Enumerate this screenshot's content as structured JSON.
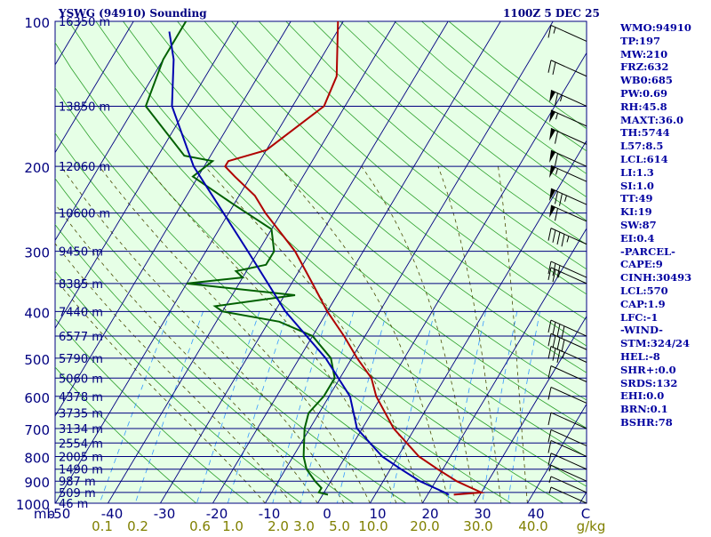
{
  "header": {
    "station": "YSWG (94910) Sounding",
    "time": "1100Z  5 DEC 25"
  },
  "indices": [
    "WMO:94910",
    "TP:197",
    "MW:210",
    "FRZ:632",
    "WB0:685",
    "PW:0.69",
    "RH:45.8",
    "MAXT:36.0",
    "TH:5744",
    "L57:8.5",
    "LCL:614",
    "LI:1.3",
    "SI:1.0",
    "TT:49",
    "KI:19",
    "SW:87",
    "EI:0.4",
    "-PARCEL-",
    "CAPE:9",
    "CINH:30493",
    "LCL:570",
    "CAP:1.9",
    "LFC:-1",
    "-WIND-",
    "STM:324/24",
    "HEL:-8",
    "SHR+:0.0",
    "SRDS:132",
    "EHI:0.0",
    "BRN:0.1",
    "BSHR:78"
  ],
  "colors": {
    "background": "#e6ffe6",
    "isobar": "#000080",
    "isotherm": "#000080",
    "dry_adiabat": "#2ca02c",
    "moist_adiabat": "#4a4a00",
    "mixing_ratio": "#3399ff",
    "temperature": "#b00000",
    "dewpoint": "#006000",
    "parcel": "#0000b0",
    "wind_barb": "#000000",
    "axis_text": "#000080",
    "mixing_text": "#808000"
  },
  "chart_data": {
    "type": "skew-t log-p",
    "y_axis": {
      "unit": "mb",
      "ticks": [
        100,
        200,
        300,
        400,
        500,
        600,
        700,
        800,
        900,
        1000
      ]
    },
    "x_axis": {
      "unit": "C",
      "ticks": [
        -50,
        -40,
        -30,
        -20,
        -10,
        0,
        10,
        20,
        30,
        40
      ]
    },
    "x_axis_labels": [
      "mb",
      "-50",
      "-40",
      "-30",
      "-20",
      "-10",
      "0",
      "10",
      "20",
      "30",
      "40",
      "C"
    ],
    "mixing_ratio_axis": {
      "unit": "g/kg",
      "ticks": [
        "0.1",
        "0.2",
        "0.6",
        "1.0",
        "2.0",
        "3.0",
        "5.0",
        "10.0",
        "20.0",
        "30.0",
        "40.0"
      ]
    },
    "height_labels": [
      {
        "p": 100,
        "label": "16350 m"
      },
      {
        "p": 150,
        "label": "13850 m"
      },
      {
        "p": 200,
        "label": "12060 m"
      },
      {
        "p": 250,
        "label": "10600 m"
      },
      {
        "p": 300,
        "label": "9450 m"
      },
      {
        "p": 350,
        "label": "8385 m"
      },
      {
        "p": 400,
        "label": "7440 m"
      },
      {
        "p": 450,
        "label": "6577 m"
      },
      {
        "p": 500,
        "label": "5790 m"
      },
      {
        "p": 550,
        "label": "5060 m"
      },
      {
        "p": 600,
        "label": "4378 m"
      },
      {
        "p": 650,
        "label": "3735 m"
      },
      {
        "p": 700,
        "label": "3134 m"
      },
      {
        "p": 750,
        "label": "2554 m"
      },
      {
        "p": 800,
        "label": "2005 m"
      },
      {
        "p": 850,
        "label": "1490 m"
      },
      {
        "p": 900,
        "label": "987 m"
      },
      {
        "p": 950,
        "label": "509 m"
      },
      {
        "p": 1000,
        "label": "46 m"
      }
    ],
    "series": [
      {
        "name": "Temperature",
        "points": [
          [
            960,
            25
          ],
          [
            950,
            30
          ],
          [
            925,
            27
          ],
          [
            900,
            24
          ],
          [
            850,
            19
          ],
          [
            800,
            14
          ],
          [
            700,
            6
          ],
          [
            600,
            -1
          ],
          [
            550,
            -4
          ],
          [
            500,
            -9
          ],
          [
            450,
            -14
          ],
          [
            400,
            -20
          ],
          [
            350,
            -26
          ],
          [
            300,
            -33
          ],
          [
            250,
            -43
          ],
          [
            230,
            -47
          ],
          [
            210,
            -53
          ],
          [
            200,
            -56
          ],
          [
            195,
            -56
          ],
          [
            185,
            -50
          ],
          [
            150,
            -44
          ],
          [
            130,
            -45
          ],
          [
            100,
            -51
          ]
        ]
      },
      {
        "name": "Dewpoint",
        "points": [
          [
            960,
            1
          ],
          [
            950,
            -1
          ],
          [
            930,
            -1
          ],
          [
            900,
            -3
          ],
          [
            850,
            -6
          ],
          [
            800,
            -8
          ],
          [
            700,
            -11
          ],
          [
            650,
            -12
          ],
          [
            600,
            -11
          ],
          [
            550,
            -11
          ],
          [
            500,
            -14
          ],
          [
            450,
            -20
          ],
          [
            420,
            -28
          ],
          [
            400,
            -40
          ],
          [
            390,
            -42
          ],
          [
            370,
            -28
          ],
          [
            350,
            -50
          ],
          [
            340,
            -40
          ],
          [
            330,
            -42
          ],
          [
            320,
            -37
          ],
          [
            300,
            -37
          ],
          [
            270,
            -40
          ],
          [
            240,
            -50
          ],
          [
            210,
            -61
          ],
          [
            195,
            -59
          ],
          [
            190,
            -65
          ],
          [
            150,
            -78
          ],
          [
            120,
            -80
          ],
          [
            100,
            -80
          ]
        ]
      },
      {
        "name": "Parcel",
        "points": [
          [
            960,
            24
          ],
          [
            950,
            23
          ],
          [
            925,
            20
          ],
          [
            900,
            17
          ],
          [
            850,
            12
          ],
          [
            800,
            7
          ],
          [
            700,
            -1
          ],
          [
            600,
            -6
          ],
          [
            500,
            -15
          ],
          [
            400,
            -28
          ],
          [
            300,
            -42
          ],
          [
            250,
            -51
          ],
          [
            200,
            -62
          ],
          [
            150,
            -73
          ],
          [
            120,
            -78
          ],
          [
            105,
            -82
          ]
        ]
      }
    ],
    "wind_profile": [
      {
        "p": 110,
        "spd": 15
      },
      {
        "p": 130,
        "spd": 20
      },
      {
        "p": 150,
        "spd": 65
      },
      {
        "p": 165,
        "spd": 55
      },
      {
        "p": 180,
        "spd": 60
      },
      {
        "p": 200,
        "spd": 60
      },
      {
        "p": 215,
        "spd": 55
      },
      {
        "p": 240,
        "spd": 75
      },
      {
        "p": 260,
        "spd": 60
      },
      {
        "p": 290,
        "spd": 45
      },
      {
        "p": 340,
        "spd": 30
      },
      {
        "p": 350,
        "spd": 25
      },
      {
        "p": 450,
        "spd": 40
      },
      {
        "p": 480,
        "spd": 40
      },
      {
        "p": 510,
        "spd": 35
      },
      {
        "p": 560,
        "spd": 10
      },
      {
        "p": 620,
        "spd": 10
      },
      {
        "p": 700,
        "spd": 10
      },
      {
        "p": 760,
        "spd": 10
      },
      {
        "p": 800,
        "spd": 10
      },
      {
        "p": 850,
        "spd": 10
      },
      {
        "p": 900,
        "spd": 5
      },
      {
        "p": 950,
        "spd": 5
      },
      {
        "p": 1000,
        "spd": 5
      }
    ]
  }
}
